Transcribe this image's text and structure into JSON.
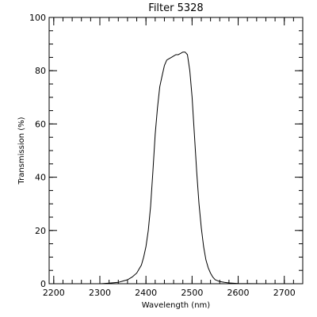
{
  "chart_data": {
    "type": "line",
    "title": "Filter 5328",
    "xlabel": "Wavelength (nm)",
    "ylabel": "Transmission (%)",
    "xlim": [
      2190,
      2740
    ],
    "ylim": [
      0,
      100
    ],
    "xticks": [
      2200,
      2300,
      2400,
      2500,
      2600,
      2700
    ],
    "yticks": [
      0,
      20,
      40,
      60,
      80,
      100
    ],
    "xtick_labels": [
      "2200",
      "2300",
      "2400",
      "2500",
      "2600",
      "2700"
    ],
    "ytick_labels": [
      "0",
      "20",
      "40",
      "60",
      "80",
      "100"
    ],
    "x_minor_step": 20,
    "y_minor_step": 5,
    "grid": false,
    "series": [
      {
        "x": [
          2250,
          2300,
          2320,
          2340,
          2350,
          2360,
          2370,
          2380,
          2390,
          2395,
          2400,
          2405,
          2410,
          2415,
          2420,
          2425,
          2430,
          2435,
          2440,
          2445,
          2450,
          2455,
          2460,
          2465,
          2470,
          2475,
          2480,
          2485,
          2490,
          2495,
          2500,
          2505,
          2510,
          2515,
          2520,
          2525,
          2530,
          2535,
          2540,
          2545,
          2550,
          2560,
          2570,
          2580,
          2600,
          2650,
          2700
        ],
        "y": [
          0,
          0,
          0.2,
          0.5,
          1,
          1.5,
          2.5,
          4,
          7,
          10,
          14,
          20,
          29,
          42,
          56,
          66,
          74,
          78,
          82,
          84,
          84.5,
          85,
          85.5,
          86,
          86,
          86.5,
          87,
          87,
          86,
          80,
          70,
          56,
          42,
          30,
          21,
          14,
          9,
          6,
          4,
          2.5,
          1.5,
          0.8,
          0.5,
          0.3,
          0.1,
          0,
          0
        ]
      }
    ]
  }
}
